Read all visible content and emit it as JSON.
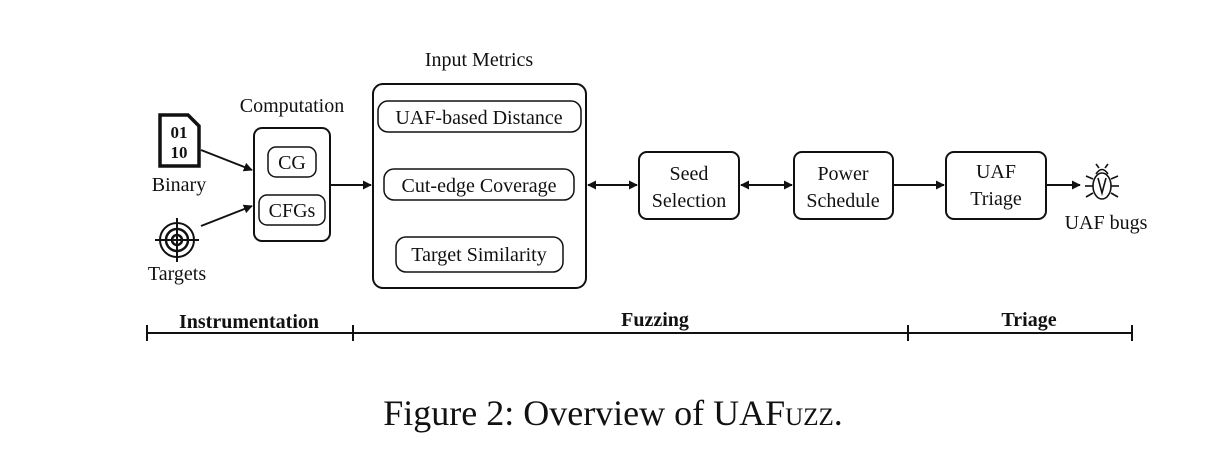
{
  "nodes": {
    "binary": "Binary",
    "binary_glyph_top": "01",
    "binary_glyph_bottom": "10",
    "targets": "Targets",
    "computation": "Computation",
    "cg": "CG",
    "cfgs": "CFGs",
    "input_metrics": "Input Metrics",
    "uaf_distance": "UAF-based Distance",
    "cut_edge": "Cut-edge Coverage",
    "target_similarity": "Target Similarity",
    "seed_line1": "Seed",
    "seed_line2": "Selection",
    "power_line1": "Power",
    "power_line2": "Schedule",
    "triage_line1": "UAF",
    "triage_line2": "Triage",
    "uaf_bugs": "UAF bugs"
  },
  "phases": {
    "instrumentation": "Instrumentation",
    "fuzzing": "Fuzzing",
    "triage": "Triage"
  },
  "caption": {
    "prefix": "Figure 2: Overview of UAF",
    "smallcaps": "uzz",
    "suffix": "."
  }
}
